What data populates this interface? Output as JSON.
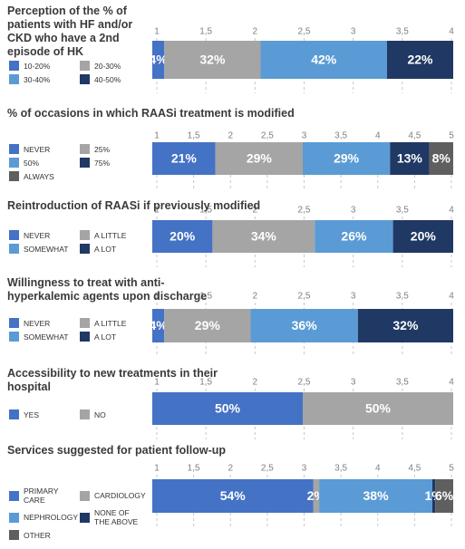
{
  "chart_data": [
    {
      "type": "bar",
      "title": "Perception of the % of patients with HF and/or CKD who have a 2nd episode of HK",
      "xlim": [
        1,
        4
      ],
      "xticks": [
        1,
        {
          "value": 1.5,
          "label": "1,5"
        },
        2,
        {
          "value": 2.5,
          "label": "2,5"
        },
        3,
        {
          "value": 3.5,
          "label": "3,5"
        },
        4
      ],
      "series": [
        {
          "name": "10-20%",
          "color": "#4472c4",
          "values": [
            4
          ],
          "value_labels": [
            "4%"
          ]
        },
        {
          "name": "20-30%",
          "color": "#a5a5a5",
          "values": [
            32
          ],
          "value_labels": [
            "32%"
          ]
        },
        {
          "name": "30-40%",
          "color": "#5b9bd5",
          "values": [
            42
          ],
          "value_labels": [
            "42%"
          ]
        },
        {
          "name": "40-50%",
          "color": "#203864",
          "values": [
            22
          ],
          "value_labels": [
            "22%"
          ]
        }
      ]
    },
    {
      "type": "bar",
      "title": "% of occasions in which RAASi treatment is modified",
      "xlim": [
        1,
        5
      ],
      "xticks": [
        1,
        {
          "value": 1.5,
          "label": "1,5"
        },
        2,
        {
          "value": 2.5,
          "label": "2,5"
        },
        3,
        {
          "value": 3.5,
          "label": "3,5"
        },
        4,
        {
          "value": 4.5,
          "label": "4,5"
        },
        5
      ],
      "series": [
        {
          "name": "NEVER",
          "color": "#4472c4",
          "values": [
            21
          ],
          "value_labels": [
            "21%"
          ]
        },
        {
          "name": "25%",
          "color": "#a5a5a5",
          "values": [
            29
          ],
          "value_labels": [
            "29%"
          ]
        },
        {
          "name": "50%",
          "color": "#5b9bd5",
          "values": [
            29
          ],
          "value_labels": [
            "29%"
          ]
        },
        {
          "name": "75%",
          "color": "#203864",
          "values": [
            13
          ],
          "value_labels": [
            "13%"
          ]
        },
        {
          "name": "ALWAYS",
          "color": "#5f5f5f",
          "values": [
            8
          ],
          "value_labels": [
            "8%"
          ]
        }
      ]
    },
    {
      "type": "bar",
      "title": "Reintroduction of RAASi if previously modified",
      "xlim": [
        1,
        4
      ],
      "xticks": [
        1,
        {
          "value": 1.5,
          "label": "1,5"
        },
        2,
        {
          "value": 2.5,
          "label": "2,5"
        },
        3,
        {
          "value": 3.5,
          "label": "3,5"
        },
        4
      ],
      "series": [
        {
          "name": "NEVER",
          "color": "#4472c4",
          "values": [
            20
          ],
          "value_labels": [
            "20%"
          ]
        },
        {
          "name": "A LITTLE",
          "color": "#a5a5a5",
          "values": [
            34
          ],
          "value_labels": [
            "34%"
          ]
        },
        {
          "name": "SOMEWHAT",
          "color": "#5b9bd5",
          "values": [
            26
          ],
          "value_labels": [
            "26%"
          ]
        },
        {
          "name": "A LOT",
          "color": "#203864",
          "values": [
            20
          ],
          "value_labels": [
            "20%"
          ]
        }
      ]
    },
    {
      "type": "bar",
      "title": "Willingness to treat with anti-hyperkalemic agents upon discharge",
      "xlim": [
        1,
        4
      ],
      "xticks": [
        1,
        {
          "value": 1.5,
          "label": "1,5"
        },
        2,
        {
          "value": 2.5,
          "label": "2,5"
        },
        3,
        {
          "value": 3.5,
          "label": "3,5"
        },
        4
      ],
      "series": [
        {
          "name": "NEVER",
          "color": "#4472c4",
          "values": [
            4
          ],
          "value_labels": [
            "4%"
          ]
        },
        {
          "name": "A LITTLE",
          "color": "#a5a5a5",
          "values": [
            29
          ],
          "value_labels": [
            "29%"
          ]
        },
        {
          "name": "SOMEWHAT",
          "color": "#5b9bd5",
          "values": [
            36
          ],
          "value_labels": [
            "36%"
          ]
        },
        {
          "name": "A LOT",
          "color": "#203864",
          "values": [
            32
          ],
          "value_labels": [
            "32%"
          ]
        }
      ]
    },
    {
      "type": "bar",
      "title": "Accessibility to new treatments in their hospital",
      "xlim": [
        1,
        4
      ],
      "xticks": [
        1,
        {
          "value": 1.5,
          "label": "1,5"
        },
        2,
        {
          "value": 2.5,
          "label": "2,5"
        },
        3,
        {
          "value": 3.5,
          "label": "3,5"
        },
        4
      ],
      "series": [
        {
          "name": "YES",
          "color": "#4472c4",
          "values": [
            50
          ],
          "value_labels": [
            "50%"
          ]
        },
        {
          "name": "NO",
          "color": "#a5a5a5",
          "values": [
            50
          ],
          "value_labels": [
            "50%"
          ]
        }
      ]
    },
    {
      "type": "bar",
      "title": "Services suggested for patient follow-up",
      "xlim": [
        1,
        5
      ],
      "xticks": [
        1,
        {
          "value": 1.5,
          "label": "1,5"
        },
        2,
        {
          "value": 2.5,
          "label": "2,5"
        },
        3,
        {
          "value": 3.5,
          "label": "3,5"
        },
        4,
        {
          "value": 4.5,
          "label": "4,5"
        },
        5
      ],
      "series": [
        {
          "name": "PRIMARY CARE",
          "color": "#4472c4",
          "values": [
            54
          ],
          "value_labels": [
            "54%"
          ]
        },
        {
          "name": "CARDIOLOGY",
          "color": "#a5a5a5",
          "values": [
            2
          ],
          "value_labels": [
            "2%"
          ]
        },
        {
          "name": "NEPHROLOGY",
          "color": "#5b9bd5",
          "values": [
            38
          ],
          "value_labels": [
            "38%"
          ]
        },
        {
          "name": "NONE OF THE ABOVE",
          "color": "#203864",
          "values": [
            1
          ],
          "value_labels": [
            "1%"
          ]
        },
        {
          "name": "OTHER",
          "color": "#5f5f5f",
          "values": [
            6
          ],
          "value_labels": [
            "6%"
          ]
        }
      ]
    }
  ]
}
